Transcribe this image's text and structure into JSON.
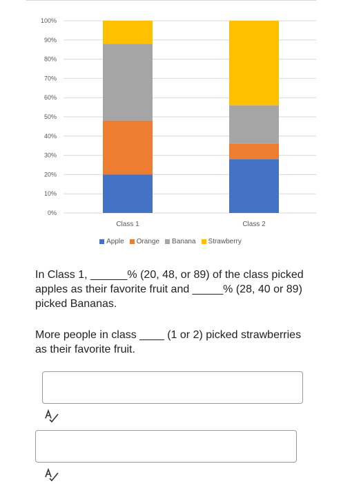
{
  "chart_data": {
    "type": "bar",
    "stacked": true,
    "normalized_percent": true,
    "categories": [
      "Class 1",
      "Class 2"
    ],
    "series": [
      {
        "name": "Apple",
        "color": "#4472C4",
        "values": [
          20,
          28
        ]
      },
      {
        "name": "Orange",
        "color": "#ED7D31",
        "values": [
          28,
          8
        ]
      },
      {
        "name": "Banana",
        "color": "#A5A5A5",
        "values": [
          40,
          20
        ]
      },
      {
        "name": "Strawberry",
        "color": "#FFC000",
        "values": [
          12,
          44
        ]
      }
    ],
    "yticks": [
      "0%",
      "10%",
      "20%",
      "30%",
      "40%",
      "50%",
      "60%",
      "70%",
      "80%",
      "90%",
      "100%"
    ],
    "ylim": [
      0,
      100
    ],
    "grid": true,
    "legend_position": "bottom",
    "title": "",
    "xlabel": "",
    "ylabel": ""
  },
  "questions": [
    {
      "text": "In Class 1, ______% (20, 48, or 89) of the class picked apples as their favorite fruit and _____% (28, 40 or 89) picked Bananas."
    },
    {
      "text": "More people in class ____ (1 or 2) picked strawberries as their favorite fruit."
    }
  ],
  "answers": [
    {
      "value": "",
      "icon": "spellcheck-icon"
    },
    {
      "value": "",
      "icon": "spellcheck-icon"
    }
  ]
}
